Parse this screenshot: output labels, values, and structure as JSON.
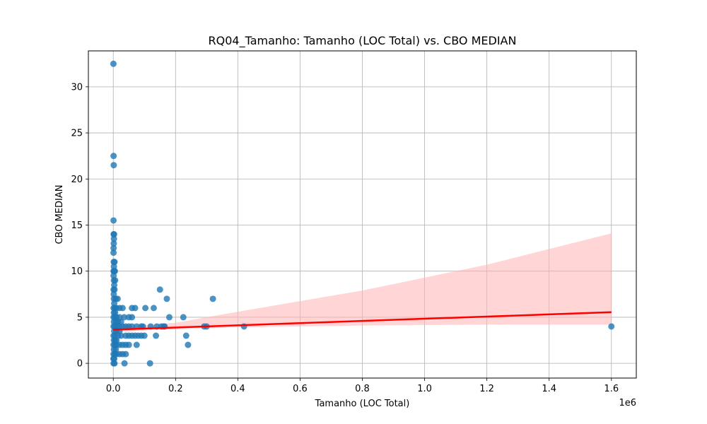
{
  "chart_data": {
    "type": "scatter",
    "title": "RQ04_Tamanho: Tamanho (LOC Total) vs. CBO MEDIAN",
    "xlabel": "Tamanho (LOC Total)",
    "ylabel": "CBO MEDIAN",
    "x_offset_label": "1e6",
    "xlim": [
      -80000,
      1680000
    ],
    "ylim": [
      -1.6,
      33.9
    ],
    "x_ticks": [
      0,
      200000,
      400000,
      600000,
      800000,
      1000000,
      1200000,
      1400000,
      1600000
    ],
    "x_tick_labels": [
      "0.0",
      "0.2",
      "0.4",
      "0.6",
      "0.8",
      "1.0",
      "1.2",
      "1.4",
      "1.6"
    ],
    "y_ticks": [
      0,
      5,
      10,
      15,
      20,
      25,
      30
    ],
    "y_tick_labels": [
      "0",
      "5",
      "10",
      "15",
      "20",
      "25",
      "30"
    ],
    "grid": true,
    "point_color": "#1f77b4",
    "series": [
      {
        "points": [
          [
            500,
            32.5
          ],
          [
            1000,
            22.5
          ],
          [
            1500,
            21.5
          ],
          [
            800,
            15.5
          ],
          [
            1200,
            14.0
          ],
          [
            2500,
            14.0
          ],
          [
            2000,
            13.5
          ],
          [
            1500,
            13.0
          ],
          [
            1000,
            12.5
          ],
          [
            800,
            12.0
          ],
          [
            1500,
            11.0
          ],
          [
            4000,
            11.0
          ],
          [
            2000,
            10.5
          ],
          [
            3000,
            10.0
          ],
          [
            1000,
            10.0
          ],
          [
            5000,
            10.0
          ],
          [
            1000,
            9.5
          ],
          [
            2000,
            9.0
          ],
          [
            6000,
            9.0
          ],
          [
            3000,
            8.5
          ],
          [
            1000,
            8.0
          ],
          [
            4000,
            8.0
          ],
          [
            1500,
            7.5
          ],
          [
            2000,
            7.0
          ],
          [
            8000,
            7.0
          ],
          [
            14000,
            7.0
          ],
          [
            3000,
            6.5
          ],
          [
            1000,
            6.0
          ],
          [
            5000,
            6.0
          ],
          [
            10000,
            6.0
          ],
          [
            20000,
            6.0
          ],
          [
            30000,
            6.0
          ],
          [
            60000,
            6.0
          ],
          [
            70000,
            6.0
          ],
          [
            2000,
            5.5
          ],
          [
            6000,
            5.5
          ],
          [
            1000,
            5.0
          ],
          [
            5000,
            5.0
          ],
          [
            10000,
            5.0
          ],
          [
            20000,
            5.0
          ],
          [
            35000,
            5.0
          ],
          [
            50000,
            5.0
          ],
          [
            60000,
            5.0
          ],
          [
            2000,
            4.5
          ],
          [
            8000,
            4.5
          ],
          [
            15000,
            4.5
          ],
          [
            25000,
            4.5
          ],
          [
            1000,
            4.0
          ],
          [
            5000,
            4.0
          ],
          [
            12000,
            4.0
          ],
          [
            20000,
            4.0
          ],
          [
            30000,
            4.0
          ],
          [
            40000,
            4.0
          ],
          [
            50000,
            4.0
          ],
          [
            60000,
            4.0
          ],
          [
            75000,
            4.0
          ],
          [
            90000,
            4.0
          ],
          [
            95000,
            4.0
          ],
          [
            3000,
            3.5
          ],
          [
            10000,
            3.5
          ],
          [
            20000,
            3.5
          ],
          [
            1000,
            3.0
          ],
          [
            5000,
            3.0
          ],
          [
            15000,
            3.0
          ],
          [
            25000,
            3.0
          ],
          [
            40000,
            3.0
          ],
          [
            50000,
            3.0
          ],
          [
            60000,
            3.0
          ],
          [
            70000,
            3.0
          ],
          [
            80000,
            3.0
          ],
          [
            90000,
            3.0
          ],
          [
            100000,
            3.0
          ],
          [
            2000,
            2.5
          ],
          [
            6000,
            2.5
          ],
          [
            10000,
            2.5
          ],
          [
            1000,
            2.0
          ],
          [
            5000,
            2.0
          ],
          [
            10000,
            2.0
          ],
          [
            20000,
            2.0
          ],
          [
            30000,
            2.0
          ],
          [
            40000,
            2.0
          ],
          [
            50000,
            2.0
          ],
          [
            75000,
            2.0
          ],
          [
            2000,
            1.5
          ],
          [
            8000,
            1.5
          ],
          [
            1000,
            1.0
          ],
          [
            5000,
            1.0
          ],
          [
            10000,
            1.0
          ],
          [
            20000,
            1.0
          ],
          [
            30000,
            1.0
          ],
          [
            40000,
            1.0
          ],
          [
            500,
            0.5
          ],
          [
            3000,
            0.5
          ],
          [
            1000,
            0.0
          ],
          [
            4000,
            0.0
          ],
          [
            36000,
            0.0
          ],
          [
            118000,
            0.0
          ],
          [
            150000,
            8.0
          ],
          [
            172000,
            7.0
          ],
          [
            103000,
            6.0
          ],
          [
            130000,
            6.0
          ],
          [
            180000,
            5.0
          ],
          [
            225000,
            5.0
          ],
          [
            120000,
            4.0
          ],
          [
            140000,
            4.0
          ],
          [
            155000,
            4.0
          ],
          [
            162000,
            4.0
          ],
          [
            165000,
            4.0
          ],
          [
            292000,
            4.0
          ],
          [
            300000,
            4.0
          ],
          [
            137000,
            3.0
          ],
          [
            234000,
            3.0
          ],
          [
            240000,
            2.0
          ],
          [
            320000,
            7.0
          ],
          [
            420000,
            4.0
          ],
          [
            1600000,
            4.0
          ]
        ]
      }
    ],
    "regression": {
      "color": "#ff0000",
      "ci_color": "#ffb3b3",
      "line": [
        [
          0,
          3.65
        ],
        [
          1600000,
          5.55
        ]
      ],
      "ci_upper": [
        [
          0,
          3.9
        ],
        [
          200000,
          4.4
        ],
        [
          400000,
          5.6
        ],
        [
          800000,
          7.9
        ],
        [
          1200000,
          10.7
        ],
        [
          1600000,
          14.1
        ]
      ],
      "ci_lower": [
        [
          1600000,
          4.2
        ],
        [
          1200000,
          4.2
        ],
        [
          800000,
          4.1
        ],
        [
          400000,
          3.9
        ],
        [
          200000,
          3.7
        ],
        [
          0,
          3.4
        ]
      ]
    }
  }
}
